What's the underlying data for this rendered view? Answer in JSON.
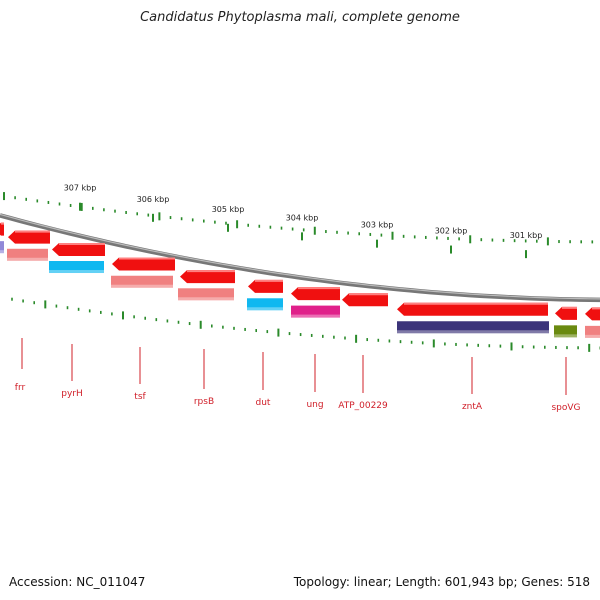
{
  "title": "Candidatus Phytoplasma mali, complete genome",
  "footer": {
    "accession": "Accession: NC_011047",
    "summary": "Topology: linear; Length: 601,943 bp; Genes: 518"
  },
  "colors": {
    "forward_gene": "#f01010",
    "backbone": "#888888",
    "tick": "#2a8a2a",
    "label": "#d0202a",
    "salmon": "#f08080",
    "cyan": "#10b8f0",
    "magenta": "#e0208a",
    "navy": "#3c347a",
    "olive": "#6a8a10",
    "lavender": "#9088d8"
  },
  "scale": {
    "unit": "kbp",
    "labels": [
      "307 kbp",
      "306 kbp",
      "305 kbp",
      "304 kbp",
      "303 kbp",
      "302 kbp",
      "301 kbp"
    ]
  },
  "genes": [
    {
      "name": "frr",
      "color": "salmon"
    },
    {
      "name": "pyrH",
      "color": "cyan"
    },
    {
      "name": "tsf",
      "color": "salmon"
    },
    {
      "name": "rpsB",
      "color": "salmon"
    },
    {
      "name": "dut",
      "color": "cyan"
    },
    {
      "name": "ung",
      "color": "magenta"
    },
    {
      "name": "ATP_00229",
      "color": "none"
    },
    {
      "name": "zntA",
      "color": "navy"
    },
    {
      "name": "spoVG",
      "color": "olive"
    }
  ]
}
